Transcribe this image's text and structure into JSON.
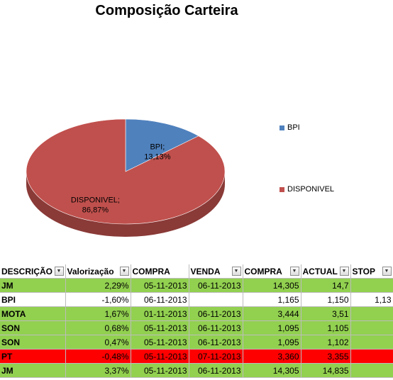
{
  "chart_data": {
    "type": "pie",
    "title": "Composição Carteira",
    "slices": [
      {
        "name": "BPI",
        "value": 13.13,
        "label": "BPI;\n13,13%",
        "color": "#4f81bd"
      },
      {
        "name": "DISPONIVEL",
        "value": 86.87,
        "label": "DISPONIVEL;\n86,87%",
        "color": "#c0504d"
      }
    ],
    "legend": [
      "BPI",
      "DISPONIVEL"
    ],
    "legend_position": "right",
    "style": "3d"
  },
  "table": {
    "headers": [
      "DESCRIÇÃO",
      "Valorização",
      "COMPRA",
      "VENDA",
      "COMPRA",
      "ACTUAL",
      "STOP"
    ],
    "rows": [
      {
        "color": "green",
        "cells": [
          "JM",
          "2,29%",
          "05-11-2013",
          "06-11-2013",
          "14,305",
          "14,7",
          ""
        ]
      },
      {
        "color": "white",
        "cells": [
          "BPI",
          "-1,60%",
          "06-11-2013",
          "",
          "1,165",
          "1,150",
          "1,13"
        ]
      },
      {
        "color": "green",
        "cells": [
          "MOTA",
          "1,67%",
          "01-11-2013",
          "06-11-2013",
          "3,444",
          "3,51",
          ""
        ]
      },
      {
        "color": "green",
        "cells": [
          "SON",
          "0,68%",
          "05-11-2013",
          "06-11-2013",
          "1,095",
          "1,105",
          ""
        ]
      },
      {
        "color": "green",
        "cells": [
          "SON",
          "0,47%",
          "05-11-2013",
          "06-11-2013",
          "1,095",
          "1,102",
          ""
        ]
      },
      {
        "color": "red",
        "cells": [
          "PT",
          "-0,48%",
          "05-11-2013",
          "07-11-2013",
          "3,360",
          "3,355",
          ""
        ]
      },
      {
        "color": "green",
        "cells": [
          "JM",
          "3,37%",
          "05-11-2013",
          "06-11-2013",
          "14,305",
          "14,835",
          ""
        ]
      }
    ]
  },
  "icons": {
    "filter": "dropdown-arrow-icon"
  }
}
